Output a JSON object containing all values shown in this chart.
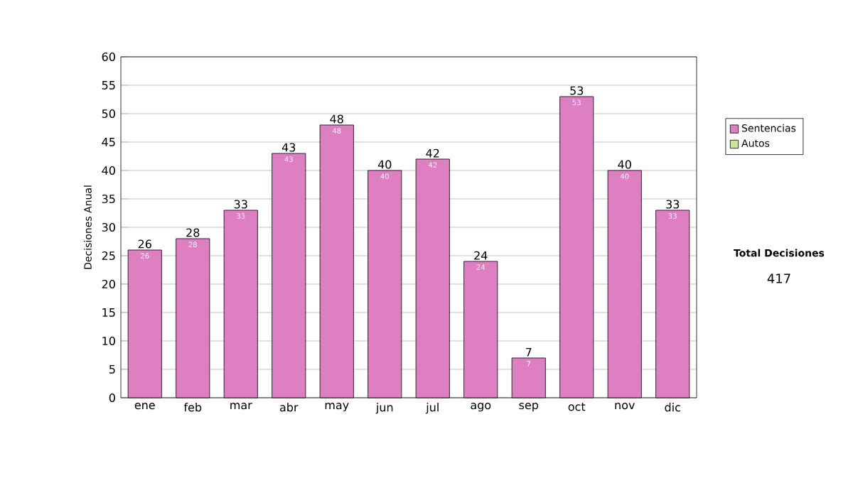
{
  "chart_data": {
    "type": "bar",
    "stacked": true,
    "ylabel": "Decisiones Anual",
    "categories": [
      "ene",
      "feb",
      "mar",
      "abr",
      "may",
      "jun",
      "jul",
      "ago",
      "sep",
      "oct",
      "nov",
      "dic"
    ],
    "series": [
      {
        "name": "Sentencias",
        "color": "#dd7fc0",
        "values": [
          26,
          28,
          33,
          43,
          48,
          40,
          42,
          24,
          7,
          53,
          40,
          33
        ],
        "value_labels": [
          "26",
          "28",
          "33",
          "43",
          "48",
          "40",
          "42",
          "24",
          "7",
          "53",
          "40",
          "33"
        ]
      },
      {
        "name": "Autos",
        "color": "#cce699",
        "values": [
          0,
          0,
          0,
          0,
          0,
          0,
          0,
          0,
          0,
          0,
          0,
          0
        ]
      }
    ],
    "totals": [
      "26",
      "28",
      "33",
      "43",
      "48",
      "40",
      "42",
      "24",
      "7",
      "53",
      "40",
      "33"
    ],
    "ylim": [
      0,
      60
    ],
    "yticks": [
      0,
      5,
      10,
      15,
      20,
      25,
      30,
      35,
      40,
      45,
      50,
      55,
      60
    ],
    "grid": "y",
    "legend": "right",
    "annotations": [
      "Total Decisiones",
      "417"
    ]
  }
}
